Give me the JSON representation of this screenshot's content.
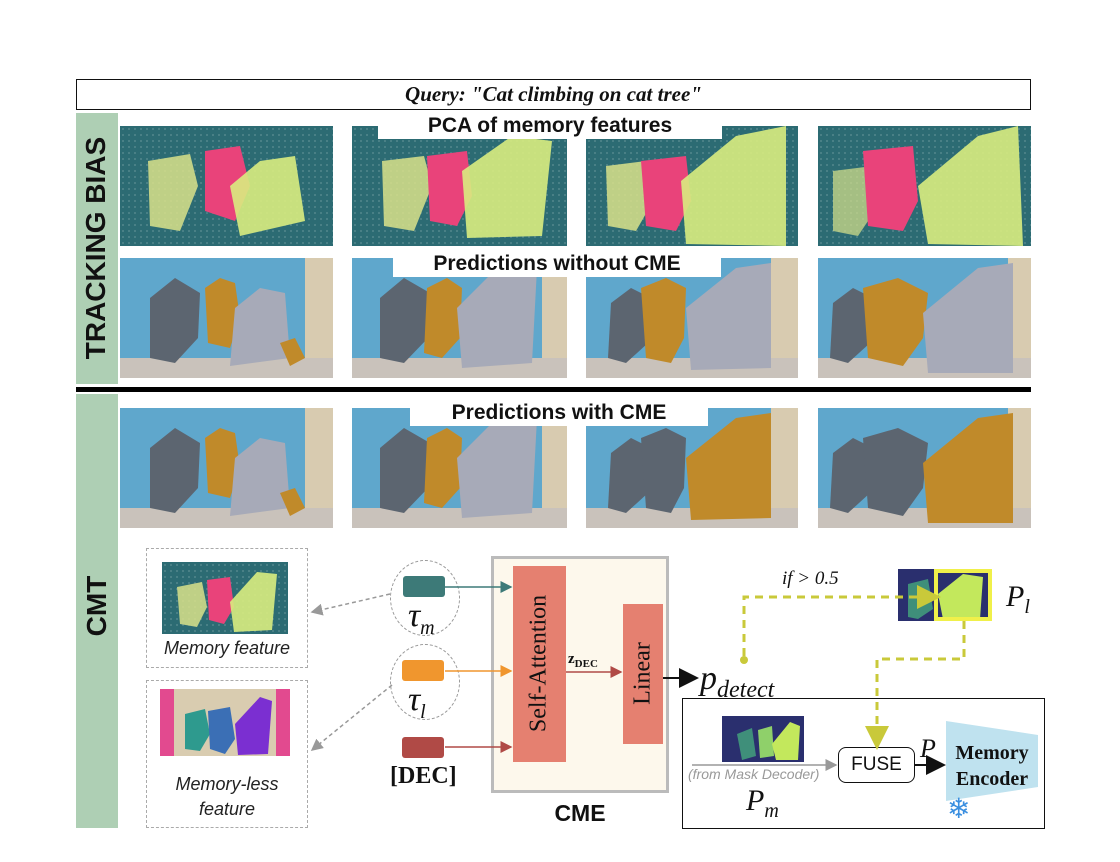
{
  "query": "Query: \"Cat climbing on cat tree\"",
  "sections": {
    "tracking_bias": "TRACKING BIAS",
    "cmt": "CMT"
  },
  "row_titles": {
    "pca": "PCA of memory features",
    "without": "Predictions without CME",
    "with": "Predictions with CME"
  },
  "diagram": {
    "memory_feature": "Memory feature",
    "memoryless_feature_line1": "Memory-less",
    "memoryless_feature_line2": "feature",
    "tau_m": "τ",
    "tau_m_sub": "m",
    "tau_l": "τ",
    "tau_l_sub": "l",
    "dec": "[DEC]",
    "self_attention": "Self-Attention",
    "linear": "Linear",
    "z_dec": "z",
    "z_dec_sub": "DEC",
    "cme": "CME",
    "p_detect": "p",
    "p_detect_sub": "detect",
    "condition": "if > 0.5",
    "p_l": "P",
    "p_l_sub": "l",
    "fuse": "FUSE",
    "p": "P",
    "from_mask_decoder": "(from Mask Decoder)",
    "p_m": "P",
    "p_m_sub": "m",
    "memory_encoder_line1": "Memory",
    "memory_encoder_line2": "Encoder",
    "snowflake": "❄"
  },
  "colors": {
    "tau_m": "#3d7a78",
    "tau_l": "#f0962e",
    "dec": "#b04a46",
    "block": "#e58070",
    "pca_bg": "#2c6b73",
    "pca_pink": "#e9437a",
    "pca_yellow": "#d9ed80",
    "mask": "#c08a2a",
    "band": "#aecfb4",
    "dash_yellow": "#c9c93a"
  }
}
